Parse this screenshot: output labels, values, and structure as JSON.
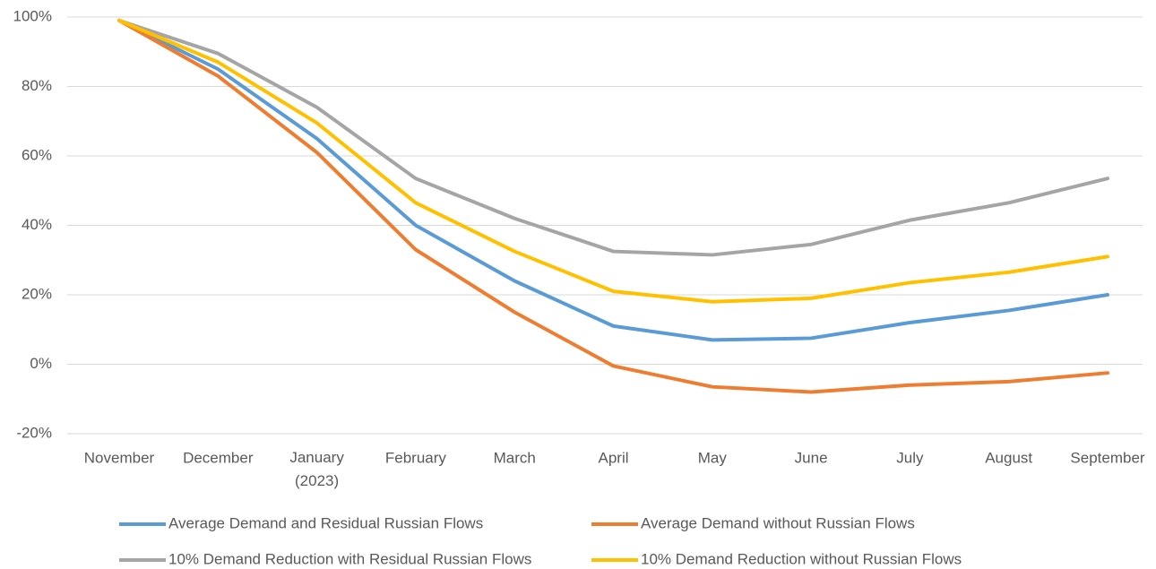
{
  "chart_data": {
    "type": "line",
    "categories": [
      "November",
      "December",
      "January (2023)",
      "February",
      "March",
      "April",
      "May",
      "June",
      "July",
      "August",
      "September"
    ],
    "series": [
      {
        "name": "Average Demand and Residual Russian Flows",
        "color": "#5b9bd5",
        "values": [
          99,
          85,
          65,
          40,
          24,
          11,
          7,
          7.5,
          12,
          15.5,
          20
        ]
      },
      {
        "name": "Average Demand without Russian Flows",
        "color": "#ed7d31",
        "values": [
          99,
          83,
          61,
          33,
          15,
          -0.5,
          -6.5,
          -8,
          -6,
          -5,
          -2.5
        ]
      },
      {
        "name": "10% Demand Reduction with Residual Russian Flows",
        "color": "#a5a5a5",
        "values": [
          99,
          89.5,
          74,
          53.5,
          42,
          32.5,
          31.5,
          34.5,
          41.5,
          46.5,
          53.5
        ]
      },
      {
        "name": "10% Demand Reduction without Russian Flows",
        "color": "#ffc000",
        "values": [
          99,
          87,
          69.5,
          46.5,
          32.5,
          21,
          18,
          19,
          23.5,
          26.5,
          31
        ]
      }
    ],
    "ylim": [
      -20,
      100
    ],
    "yticks": [
      {
        "value": -20,
        "label": "-20%"
      },
      {
        "value": 0,
        "label": "0%"
      },
      {
        "value": 20,
        "label": "20%"
      },
      {
        "value": 40,
        "label": "40%"
      },
      {
        "value": 60,
        "label": "60%"
      },
      {
        "value": 80,
        "label": "80%"
      },
      {
        "value": 100,
        "label": "100%"
      }
    ],
    "grid": true
  }
}
